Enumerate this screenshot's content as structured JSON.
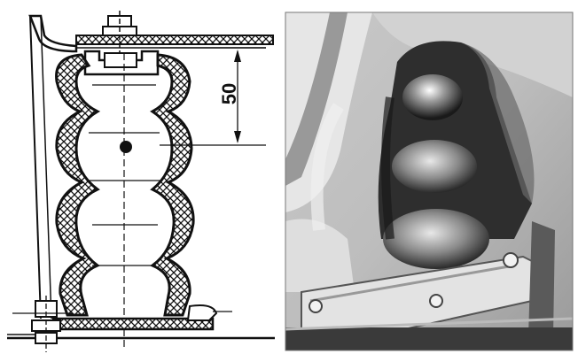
{
  "figure": {
    "drawing": {
      "dimension_label": "50"
    },
    "photo": {}
  }
}
